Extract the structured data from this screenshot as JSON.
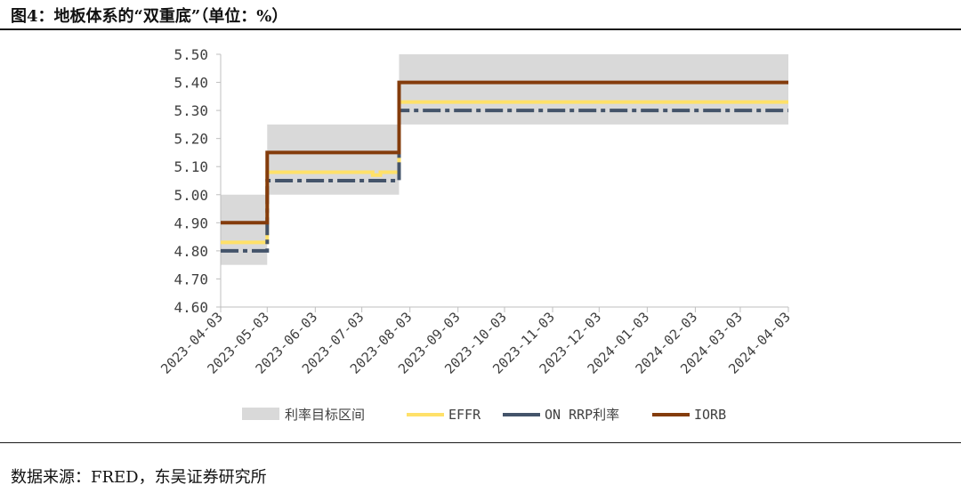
{
  "header": {
    "title": "图4：地板体系的“双重底”（单位：%）"
  },
  "footer": {
    "source": "数据来源：FRED，东吴证券研究所"
  },
  "colors": {
    "band": "#d9d9d9",
    "effr": "#ffe169",
    "onrrp": "#44546a",
    "iorb": "#843c0c",
    "axis": "#bfbfbf"
  },
  "chart_data": {
    "type": "line",
    "title": "",
    "xlabel": "",
    "ylabel": "",
    "ylim": [
      4.6,
      5.5
    ],
    "yticks": [
      "4.60",
      "4.70",
      "4.80",
      "4.90",
      "5.00",
      "5.10",
      "5.20",
      "5.30",
      "5.40",
      "5.50"
    ],
    "xticks": [
      "2023-04-03",
      "2023-05-03",
      "2023-06-03",
      "2023-07-03",
      "2023-08-03",
      "2023-09-03",
      "2023-10-03",
      "2023-11-03",
      "2023-12-03",
      "2024-01-03",
      "2024-02-03",
      "2024-03-03",
      "2024-04-03"
    ],
    "xlim": [
      "2023-04-03",
      "2024-04-03"
    ],
    "legend_position": "bottom",
    "band": {
      "name": "利率目标区间",
      "segments": [
        {
          "start": "2023-04-03",
          "end": "2023-05-03",
          "low": 4.75,
          "high": 5.0
        },
        {
          "start": "2023-05-03",
          "end": "2023-07-27",
          "low": 5.0,
          "high": 5.25
        },
        {
          "start": "2023-07-27",
          "end": "2024-04-03",
          "low": 5.25,
          "high": 5.5
        }
      ]
    },
    "series": [
      {
        "name": "EFFR",
        "style": "solid",
        "points": [
          [
            "2023-04-03",
            4.83
          ],
          [
            "2023-05-03",
            4.83
          ],
          [
            "2023-05-03",
            5.08
          ],
          [
            "2023-07-10",
            5.08
          ],
          [
            "2023-07-10",
            5.07
          ],
          [
            "2023-07-15",
            5.07
          ],
          [
            "2023-07-15",
            5.08
          ],
          [
            "2023-07-27",
            5.08
          ],
          [
            "2023-07-27",
            5.33
          ],
          [
            "2024-04-03",
            5.33
          ]
        ]
      },
      {
        "name": "ON RRP利率",
        "style": "dashdot",
        "points": [
          [
            "2023-04-03",
            4.8
          ],
          [
            "2023-05-03",
            4.8
          ],
          [
            "2023-05-03",
            5.05
          ],
          [
            "2023-07-27",
            5.05
          ],
          [
            "2023-07-27",
            5.3
          ],
          [
            "2024-04-03",
            5.3
          ]
        ]
      },
      {
        "name": "IORB",
        "style": "solid",
        "points": [
          [
            "2023-04-03",
            4.9
          ],
          [
            "2023-05-03",
            4.9
          ],
          [
            "2023-05-03",
            5.15
          ],
          [
            "2023-07-27",
            5.15
          ],
          [
            "2023-07-27",
            5.4
          ],
          [
            "2024-04-03",
            5.4
          ]
        ]
      }
    ]
  }
}
